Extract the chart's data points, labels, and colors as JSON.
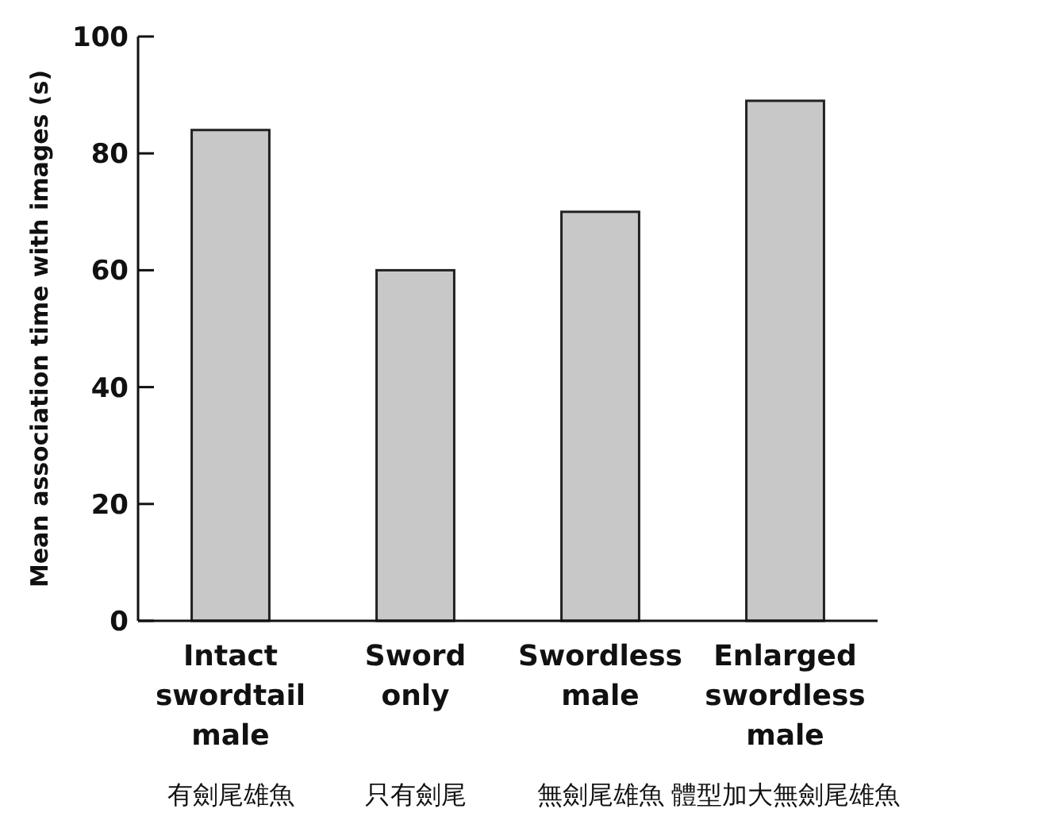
{
  "chart_data": {
    "type": "bar",
    "ylabel": "Mean association time with images (s)",
    "categories": [
      "Intact\nswordtail\nmale\n有劍尾雄魚",
      "Sword\nonly\n只有劍尾",
      "Swordless\nmale\n無劍尾雄魚",
      "Enlarged\nswordless\nmale\n體型加大無劍尾雄魚"
    ],
    "values": [
      84,
      60,
      70,
      89
    ],
    "color": "#c8c8c8",
    "ylim": [
      0,
      100
    ],
    "yticks": [
      0,
      20,
      40,
      60,
      80,
      100
    ],
    "grid": false
  }
}
